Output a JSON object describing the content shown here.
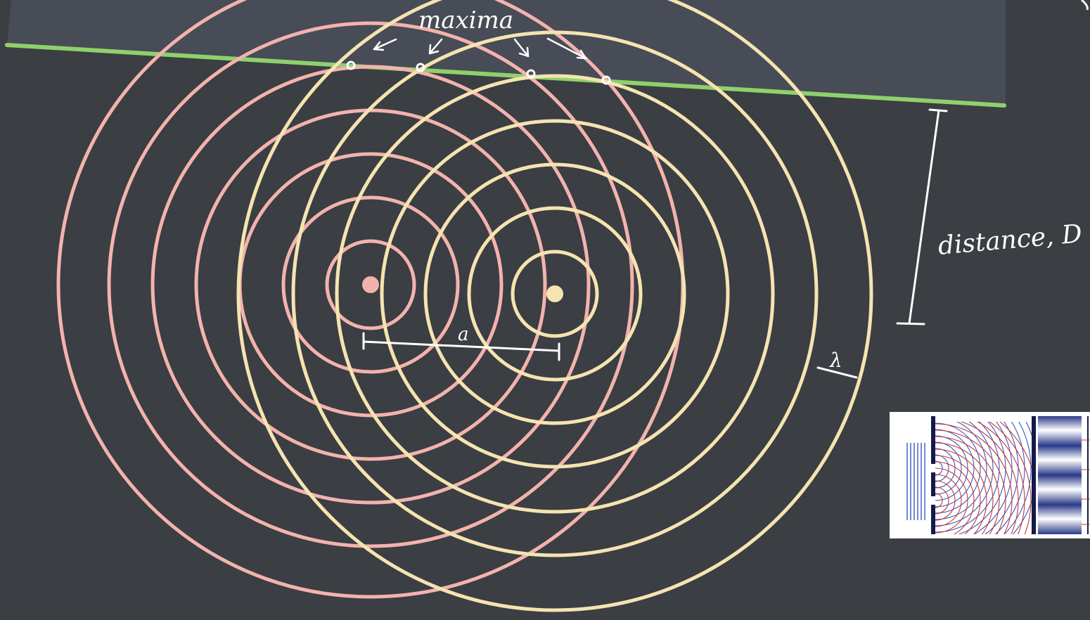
{
  "labels": {
    "maxima": "maxima",
    "separation": "a",
    "distance": "distance, D",
    "wavelength": "λ"
  },
  "colors": {
    "board": "#3b3e43",
    "screen": "#474c56",
    "screen_edge": "#8fd16a",
    "source_left": "#f3b3ad",
    "source_right": "#f5e4b1",
    "chalk": "#ffffff"
  },
  "icons": {
    "arrow": "hand-drawn-arrow-icon",
    "dot": "maxima-dot-icon"
  }
}
